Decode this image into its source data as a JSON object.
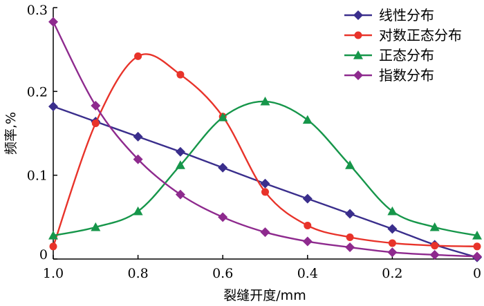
{
  "chart_data": {
    "type": "line",
    "xlabel": "裂缝开度/mm",
    "ylabel": "频率,%",
    "xlim": [
      1.0,
      0
    ],
    "ylim": [
      0,
      0.3
    ],
    "x_ticks": [
      "1.0",
      "0.8",
      "0.6",
      "0.4",
      "0.2",
      "0"
    ],
    "x_tick_values": [
      1.0,
      0.8,
      0.6,
      0.4,
      0.2,
      0
    ],
    "y_ticks": [
      "0",
      "0.1",
      "0.2",
      "0.3"
    ],
    "y_tick_values": [
      0,
      0.1,
      0.2,
      0.3
    ],
    "x_reversed": true,
    "grid": false,
    "legend_position": "top-right",
    "x": [
      1.0,
      0.9,
      0.8,
      0.7,
      0.6,
      0.5,
      0.4,
      0.3,
      0.2,
      0.1,
      0.0
    ],
    "series": [
      {
        "name": "线性分布",
        "color": "#3a2e8c",
        "marker": "diamond",
        "values": [
          0.182,
          0.164,
          0.146,
          0.128,
          0.109,
          0.09,
          0.072,
          0.054,
          0.036,
          0.017,
          0.002
        ]
      },
      {
        "name": "对数正态分布",
        "color": "#e8332a",
        "marker": "circle",
        "values": [
          0.015,
          0.162,
          0.242,
          0.22,
          0.17,
          0.08,
          0.04,
          0.026,
          0.019,
          0.016,
          0.015
        ]
      },
      {
        "name": "正态分布",
        "color": "#16964a",
        "marker": "triangle",
        "values": [
          0.028,
          0.038,
          0.057,
          0.112,
          0.169,
          0.188,
          0.166,
          0.112,
          0.057,
          0.038,
          0.028
        ]
      },
      {
        "name": "指数分布",
        "color": "#8e2a8e",
        "marker": "diamond",
        "values": [
          0.283,
          0.183,
          0.119,
          0.077,
          0.05,
          0.032,
          0.021,
          0.014,
          0.008,
          0.005,
          0.003
        ]
      }
    ]
  }
}
